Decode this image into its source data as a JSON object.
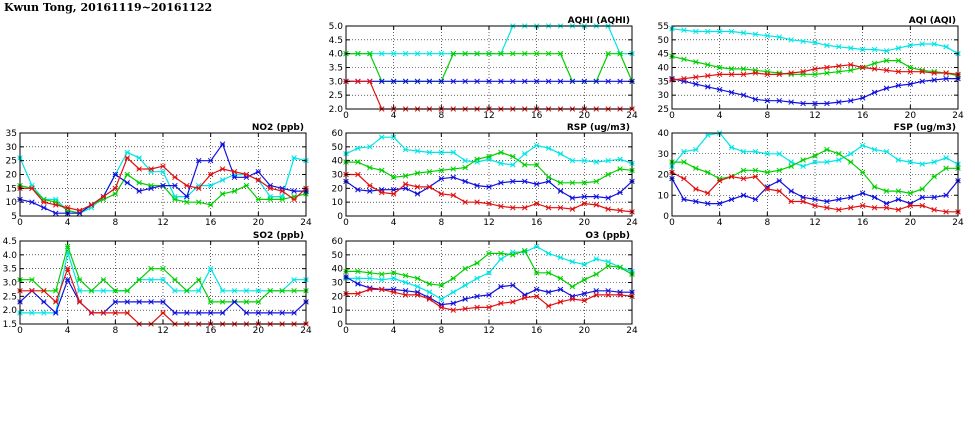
{
  "page_title": "Kwun Tong, 20161119~20161122",
  "colors": {
    "s1": "#00e5e5",
    "s2": "#00d000",
    "s3": "#1010e0",
    "s4": "#e01010"
  },
  "chart_data": [
    {
      "type": "line",
      "title": "AQHI (AQHI)",
      "xlim": [
        0,
        24
      ],
      "ylim": [
        2.0,
        5.0
      ],
      "xticks": [
        "0",
        "4",
        "8",
        "12",
        "16",
        "20",
        "24"
      ],
      "yticks": [
        "2.0",
        "2.5",
        "3.0",
        "3.5",
        "4.0",
        "4.5",
        "5.0"
      ],
      "grid": true,
      "x": [
        0,
        1,
        2,
        3,
        4,
        5,
        6,
        7,
        8,
        9,
        10,
        11,
        12,
        13,
        14,
        15,
        16,
        17,
        18,
        19,
        20,
        21,
        22,
        23,
        24
      ],
      "series": [
        {
          "color": "s1",
          "values": [
            4,
            4,
            4,
            4,
            4,
            4,
            4,
            4,
            4,
            4,
            4,
            4,
            4,
            4,
            5,
            5,
            5,
            5,
            5,
            5,
            5,
            5,
            5,
            4,
            4
          ]
        },
        {
          "color": "s2",
          "values": [
            4,
            4,
            4,
            3,
            3,
            3,
            3,
            3,
            3,
            4,
            4,
            4,
            4,
            4,
            4,
            4,
            4,
            4,
            4,
            3,
            3,
            3,
            4,
            4,
            3
          ]
        },
        {
          "color": "s3",
          "values": [
            3,
            3,
            3,
            3,
            3,
            3,
            3,
            3,
            3,
            3,
            3,
            3,
            3,
            3,
            3,
            3,
            3,
            3,
            3,
            3,
            3,
            3,
            3,
            3,
            3
          ]
        },
        {
          "color": "s4",
          "values": [
            3,
            3,
            3,
            2,
            2,
            2,
            2,
            2,
            2,
            2,
            2,
            2,
            2,
            2,
            2,
            2,
            2,
            2,
            2,
            2,
            2,
            2,
            2,
            2,
            2
          ]
        }
      ]
    },
    {
      "type": "line",
      "title": "AQI (AQI)",
      "xlim": [
        0,
        24
      ],
      "ylim": [
        25,
        55
      ],
      "xticks": [
        "0",
        "4",
        "8",
        "12",
        "16",
        "20",
        "24"
      ],
      "yticks": [
        "25",
        "30",
        "35",
        "40",
        "45",
        "50",
        "55"
      ],
      "grid": true,
      "x": [
        0,
        1,
        2,
        3,
        4,
        5,
        6,
        7,
        8,
        9,
        10,
        11,
        12,
        13,
        14,
        15,
        16,
        17,
        18,
        19,
        20,
        21,
        22,
        23,
        24
      ],
      "series": [
        {
          "color": "s1",
          "values": [
            54,
            53.5,
            53,
            53,
            53,
            53,
            52.5,
            52,
            51.5,
            51,
            50,
            49.5,
            49,
            48,
            47.5,
            47,
            46.5,
            46.5,
            46,
            47,
            48,
            48.5,
            48.5,
            47.5,
            45
          ]
        },
        {
          "color": "s2",
          "values": [
            44,
            43,
            42,
            41,
            40,
            39.5,
            39.5,
            39,
            38.5,
            38,
            37.5,
            37.5,
            37.5,
            38,
            38.5,
            39,
            40,
            41.5,
            42.5,
            42.5,
            40,
            39,
            38.5,
            38,
            37
          ]
        },
        {
          "color": "s3",
          "values": [
            36,
            35,
            34,
            33,
            32,
            31,
            30,
            28.5,
            28,
            28,
            27.5,
            27,
            27,
            27,
            27.5,
            28,
            29,
            31,
            32.5,
            33.5,
            34,
            35,
            35.5,
            36,
            36
          ]
        },
        {
          "color": "s4",
          "values": [
            35.5,
            36,
            36.5,
            37,
            37.5,
            37.5,
            37.5,
            38,
            37.5,
            37.5,
            38,
            38.5,
            39.5,
            40,
            40.5,
            41,
            40,
            39.5,
            39,
            38.5,
            38.5,
            38.5,
            38,
            38,
            37.5
          ]
        }
      ]
    },
    {
      "type": "line",
      "title": "NO2 (ppb)",
      "xlim": [
        0,
        24
      ],
      "ylim": [
        5,
        35
      ],
      "xticks": [
        "0",
        "4",
        "8",
        "12",
        "16",
        "20",
        "24"
      ],
      "yticks": [
        "5",
        "10",
        "15",
        "20",
        "25",
        "30",
        "35"
      ],
      "grid": true,
      "x": [
        0,
        1,
        2,
        3,
        4,
        5,
        6,
        7,
        8,
        9,
        10,
        11,
        12,
        13,
        14,
        15,
        16,
        17,
        18,
        19,
        20,
        21,
        22,
        23,
        24
      ],
      "series": [
        {
          "color": "s1",
          "values": [
            26,
            16,
            11,
            11,
            7,
            6,
            8,
            12,
            20,
            28,
            26,
            21,
            21,
            12,
            12,
            16,
            16,
            18,
            20,
            20,
            18,
            12,
            12,
            26,
            25
          ]
        },
        {
          "color": "s2",
          "values": [
            16,
            15,
            11,
            10,
            7,
            6,
            9,
            11,
            13,
            20,
            17,
            16,
            16,
            11,
            10,
            10,
            9,
            13,
            14,
            16,
            11,
            11,
            11,
            12,
            13
          ]
        },
        {
          "color": "s3",
          "values": [
            11,
            10,
            8,
            6,
            6,
            6,
            9,
            12,
            20,
            17,
            14,
            15,
            16,
            16,
            12,
            25,
            25,
            31,
            19,
            19,
            21,
            16,
            15,
            14,
            14
          ]
        },
        {
          "color": "s4",
          "values": [
            15,
            15,
            10,
            9,
            8,
            7,
            9,
            12,
            15,
            26,
            22,
            22,
            23,
            19,
            16,
            15,
            20,
            22,
            21,
            20,
            18,
            15,
            14,
            11,
            15
          ]
        }
      ]
    },
    {
      "type": "line",
      "title": "RSP (ug/m3)",
      "xlim": [
        0,
        24
      ],
      "ylim": [
        0,
        60
      ],
      "xticks": [
        "0",
        "4",
        "8",
        "12",
        "16",
        "20",
        "24"
      ],
      "yticks": [
        "0",
        "10",
        "20",
        "30",
        "40",
        "50",
        "60"
      ],
      "grid": true,
      "x": [
        0,
        1,
        2,
        3,
        4,
        5,
        6,
        7,
        8,
        9,
        10,
        11,
        12,
        13,
        14,
        15,
        16,
        17,
        18,
        19,
        20,
        21,
        22,
        23,
        24
      ],
      "series": [
        {
          "color": "s1",
          "values": [
            45,
            49,
            50,
            57,
            57,
            48,
            47,
            46,
            46,
            46,
            40,
            39,
            41,
            38,
            37,
            45,
            51,
            49,
            45,
            40,
            40,
            39,
            40,
            41,
            38
          ]
        },
        {
          "color": "s2",
          "values": [
            39,
            39,
            35,
            33,
            28,
            29,
            31,
            32,
            33,
            34,
            35,
            41,
            43,
            46,
            43,
            37,
            37,
            28,
            24,
            24,
            24,
            25,
            30,
            34,
            33
          ]
        },
        {
          "color": "s3",
          "values": [
            25,
            19,
            18,
            19,
            19,
            20,
            16,
            21,
            27,
            28,
            25,
            22,
            21,
            24,
            25,
            25,
            23,
            25,
            18,
            13,
            14,
            14,
            13,
            17,
            25
          ]
        },
        {
          "color": "s4",
          "values": [
            30,
            30,
            22,
            17,
            16,
            23,
            21,
            21,
            16,
            15,
            10,
            10,
            9,
            7,
            6,
            6,
            9,
            6,
            6,
            5,
            9,
            8,
            5,
            4,
            3
          ]
        }
      ]
    },
    {
      "type": "line",
      "title": "FSP (ug/m3)",
      "xlim": [
        0,
        24
      ],
      "ylim": [
        0,
        40
      ],
      "xticks": [
        "0",
        "4",
        "8",
        "12",
        "16",
        "20",
        "24"
      ],
      "yticks": [
        "0",
        "10",
        "20",
        "30",
        "40"
      ],
      "grid": true,
      "x": [
        0,
        1,
        2,
        3,
        4,
        5,
        6,
        7,
        8,
        9,
        10,
        11,
        12,
        13,
        14,
        15,
        16,
        17,
        18,
        19,
        20,
        21,
        22,
        23,
        24
      ],
      "series": [
        {
          "color": "s1",
          "values": [
            24,
            31,
            32,
            39,
            40,
            33,
            31,
            31,
            30,
            30,
            26,
            24,
            26,
            26,
            27,
            30,
            34,
            32,
            31,
            27,
            26,
            25,
            26,
            28,
            25
          ]
        },
        {
          "color": "s2",
          "values": [
            26,
            26,
            23,
            21,
            18,
            19,
            22,
            22,
            21,
            22,
            24,
            27,
            29,
            32,
            30,
            26,
            21,
            14,
            12,
            12,
            11,
            13,
            19,
            23,
            23
          ]
        },
        {
          "color": "s3",
          "values": [
            18,
            8,
            7,
            6,
            6,
            8,
            10,
            8,
            14,
            17,
            12,
            9,
            8,
            7,
            8,
            9,
            11,
            9,
            6,
            8,
            6,
            9,
            9,
            10,
            17
          ]
        },
        {
          "color": "s4",
          "values": [
            21,
            18,
            13,
            11,
            17,
            19,
            18,
            19,
            13,
            12,
            7,
            7,
            5,
            4,
            3,
            4,
            5,
            4,
            4,
            3,
            5,
            5,
            3,
            2,
            2
          ]
        }
      ]
    },
    {
      "type": "line",
      "title": "SO2 (ppb)",
      "xlim": [
        0,
        24
      ],
      "ylim": [
        1.5,
        4.5
      ],
      "xticks": [
        "0",
        "4",
        "8",
        "12",
        "16",
        "20",
        "24"
      ],
      "yticks": [
        "1.5",
        "2.0",
        "2.5",
        "3.0",
        "3.5",
        "4.0",
        "4.5"
      ],
      "grid": true,
      "x": [
        0,
        1,
        2,
        3,
        4,
        5,
        6,
        7,
        8,
        9,
        10,
        11,
        12,
        13,
        14,
        15,
        16,
        17,
        18,
        19,
        20,
        21,
        22,
        23,
        24
      ],
      "series": [
        {
          "color": "s1",
          "values": [
            1.9,
            1.9,
            1.9,
            1.9,
            4.1,
            2.7,
            2.7,
            2.7,
            2.7,
            2.7,
            3.1,
            3.1,
            3.1,
            2.7,
            2.7,
            2.7,
            3.5,
            2.7,
            2.7,
            2.7,
            2.7,
            2.7,
            2.7,
            3.1,
            3.1
          ]
        },
        {
          "color": "s2",
          "values": [
            3.1,
            3.1,
            2.7,
            2.7,
            4.3,
            3.1,
            2.7,
            3.1,
            2.7,
            2.7,
            3.1,
            3.5,
            3.5,
            3.1,
            2.7,
            3.1,
            2.3,
            2.3,
            2.3,
            2.3,
            2.3,
            2.7,
            2.7,
            2.7,
            2.7
          ]
        },
        {
          "color": "s3",
          "values": [
            2.3,
            2.7,
            2.3,
            1.9,
            3.1,
            2.3,
            1.9,
            1.9,
            2.3,
            2.3,
            2.3,
            2.3,
            2.3,
            1.9,
            1.9,
            1.9,
            1.9,
            1.9,
            2.3,
            1.9,
            1.9,
            1.9,
            1.9,
            1.9,
            2.3
          ]
        },
        {
          "color": "s4",
          "values": [
            2.7,
            2.7,
            2.7,
            2.3,
            3.5,
            2.3,
            1.9,
            1.9,
            1.9,
            1.9,
            1.5,
            1.5,
            1.9,
            1.5,
            1.5,
            1.5,
            1.5,
            1.5,
            1.5,
            1.5,
            1.5,
            1.5,
            1.5,
            1.5,
            1.5
          ]
        }
      ]
    },
    {
      "type": "line",
      "title": "O3 (ppb)",
      "xlim": [
        0,
        24
      ],
      "ylim": [
        0,
        60
      ],
      "xticks": [
        "0",
        "4",
        "8",
        "12",
        "16",
        "20",
        "24"
      ],
      "yticks": [
        "0",
        "10",
        "20",
        "30",
        "40",
        "50",
        "60"
      ],
      "grid": true,
      "x": [
        0,
        1,
        2,
        3,
        4,
        5,
        6,
        7,
        8,
        9,
        10,
        11,
        12,
        13,
        14,
        15,
        16,
        17,
        18,
        19,
        20,
        21,
        22,
        23,
        24
      ],
      "series": [
        {
          "color": "s1",
          "values": [
            33,
            33,
            33,
            32,
            33,
            30,
            27,
            23,
            18,
            23,
            28,
            33,
            37,
            47,
            52,
            52,
            56,
            51,
            48,
            45,
            43,
            47,
            45,
            41,
            38
          ]
        },
        {
          "color": "s2",
          "values": [
            38,
            38,
            37,
            36,
            37,
            35,
            33,
            29,
            28,
            33,
            40,
            44,
            51,
            51,
            50,
            53,
            37,
            37,
            33,
            27,
            32,
            36,
            42,
            41,
            36
          ]
        },
        {
          "color": "s3",
          "values": [
            34,
            29,
            26,
            25,
            25,
            24,
            23,
            19,
            14,
            15,
            18,
            20,
            21,
            27,
            28,
            21,
            25,
            23,
            25,
            20,
            22,
            24,
            24,
            23,
            23
          ]
        },
        {
          "color": "s4",
          "values": [
            22,
            22,
            25,
            25,
            23,
            21,
            21,
            18,
            12,
            10,
            11,
            12,
            12,
            15,
            16,
            19,
            20,
            13,
            16,
            18,
            17,
            21,
            21,
            21,
            20
          ]
        }
      ]
    }
  ]
}
